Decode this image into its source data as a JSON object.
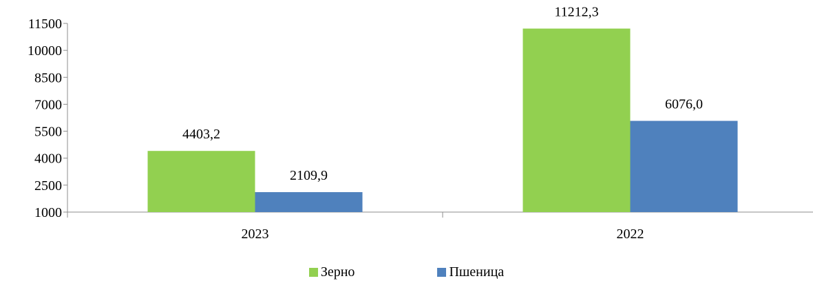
{
  "chart_data": {
    "type": "bar",
    "categories": [
      "2023",
      "2022"
    ],
    "series": [
      {
        "name": "Зерно",
        "values": [
          4403.2,
          11212.3
        ],
        "labels": [
          "4403,2",
          "11212,3"
        ],
        "color": "#92d050"
      },
      {
        "name": "Пшеница",
        "values": [
          2109.9,
          6076.0
        ],
        "labels": [
          "2109,9",
          "6076,0"
        ],
        "color": "#4f81bd"
      }
    ],
    "ylim": [
      1000,
      11500
    ],
    "yticks": [
      1000,
      2500,
      4000,
      5500,
      7000,
      8500,
      10000,
      11500
    ],
    "grid": false,
    "legend_position": "bottom",
    "title": "",
    "xlabel": "",
    "ylabel": ""
  }
}
